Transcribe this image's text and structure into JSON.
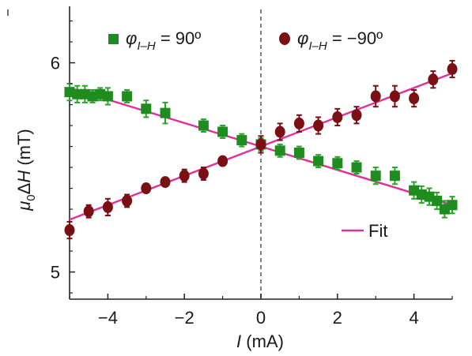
{
  "chart_data": {
    "type": "scatter",
    "xlabel": {
      "var": "I",
      "unit": " (mA)"
    },
    "ylabel": {
      "pre": "μ",
      "sub": "0",
      "mid": "Δ",
      "var": "H",
      "unit": " (mT)"
    },
    "xlim": [
      -5,
      5
    ],
    "ylim": [
      4.87,
      6.27
    ],
    "xticks": [
      -4,
      -2,
      0,
      2,
      4
    ],
    "xtick_labels": [
      "−4",
      "−2",
      "0",
      "2",
      "4"
    ],
    "yticks": [
      5,
      6
    ],
    "ytick_labels": [
      "5",
      "6"
    ],
    "zero_line": {
      "x": 0,
      "style": "dashed",
      "color": "#808080"
    },
    "grid": false,
    "series": [
      {
        "name": {
          "phi": "φ",
          "sub": "I–H",
          "value": " = 90º"
        },
        "marker": "square",
        "color": "#1e8c1e",
        "errorbar_color": "#2aa52a",
        "x": [
          -5.0,
          -4.8,
          -4.6,
          -4.4,
          -4.2,
          -4.0,
          -3.5,
          -3.0,
          -2.5,
          -1.5,
          -1.0,
          -0.5,
          0.0,
          0.5,
          1.0,
          1.5,
          2.0,
          2.5,
          3.0,
          3.5,
          4.0,
          4.2,
          4.4,
          4.6,
          4.8,
          5.0
        ],
        "y": [
          5.86,
          5.85,
          5.85,
          5.84,
          5.85,
          5.84,
          5.84,
          5.78,
          5.76,
          5.7,
          5.67,
          5.63,
          5.61,
          5.58,
          5.57,
          5.53,
          5.52,
          5.5,
          5.46,
          5.46,
          5.39,
          5.37,
          5.36,
          5.34,
          5.3,
          5.32
        ],
        "err": [
          0.04,
          0.04,
          0.04,
          0.03,
          0.03,
          0.04,
          0.03,
          0.04,
          0.05,
          0.03,
          0.03,
          0.03,
          0.03,
          0.03,
          0.03,
          0.03,
          0.03,
          0.03,
          0.04,
          0.04,
          0.04,
          0.04,
          0.04,
          0.04,
          0.04,
          0.04
        ]
      },
      {
        "name": {
          "phi": "φ",
          "sub": "I–H",
          "value": " = −90º"
        },
        "marker": "circle",
        "color": "#7a0f14",
        "errorbar_color": "#7a0f14",
        "x": [
          -5.0,
          -4.5,
          -4.0,
          -3.5,
          -3.0,
          -2.5,
          -2.0,
          -1.5,
          -1.0,
          0.0,
          0.5,
          1.0,
          1.5,
          2.0,
          2.5,
          3.0,
          3.5,
          4.0,
          4.5,
          5.0
        ],
        "y": [
          5.2,
          5.29,
          5.31,
          5.34,
          5.4,
          5.43,
          5.46,
          5.47,
          5.53,
          5.61,
          5.67,
          5.71,
          5.7,
          5.74,
          5.75,
          5.84,
          5.84,
          5.83,
          5.92,
          5.97
        ],
        "err": [
          0.04,
          0.03,
          0.04,
          0.03,
          0.02,
          0.02,
          0.03,
          0.03,
          0.02,
          0.04,
          0.04,
          0.04,
          0.04,
          0.04,
          0.04,
          0.05,
          0.05,
          0.04,
          0.04,
          0.04
        ]
      }
    ],
    "fit": {
      "label": "Fit",
      "color": "#e0309a",
      "lines": [
        {
          "x": [
            -5,
            5
          ],
          "y": [
            5.88,
            5.32
          ]
        },
        {
          "x": [
            -5,
            5
          ],
          "y": [
            5.25,
            5.95
          ]
        }
      ]
    }
  }
}
